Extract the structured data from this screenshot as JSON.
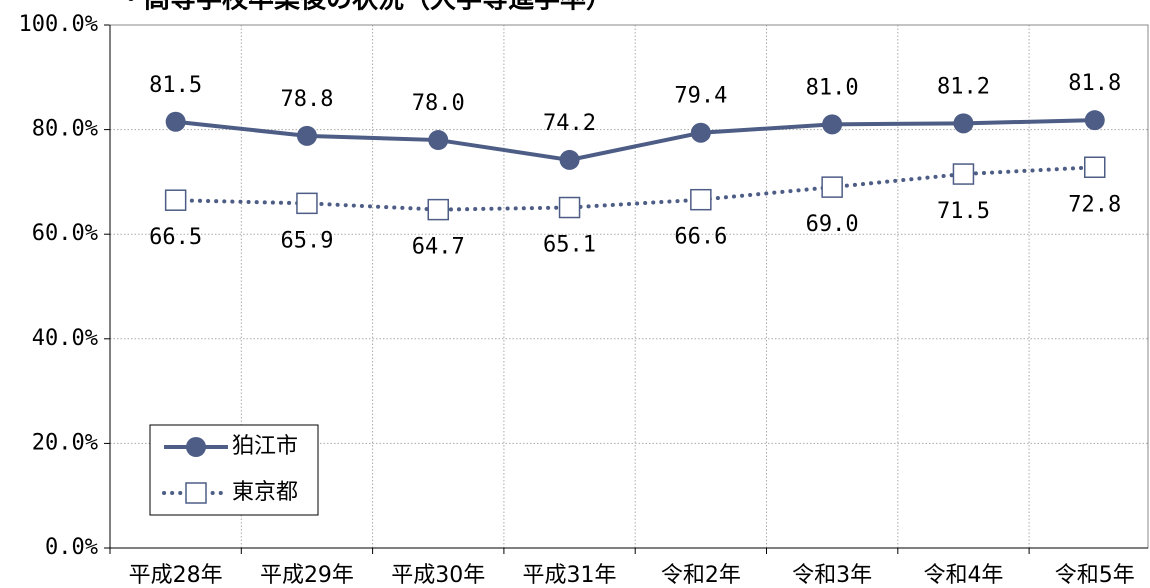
{
  "chart_data": {
    "type": "line",
    "title": "・高等学校卒業後の状況（大学等進学率）",
    "categories": [
      "平成28年",
      "平成29年",
      "平成30年",
      "平成31年",
      "令和2年",
      "令和3年",
      "令和4年",
      "令和5年"
    ],
    "series": [
      {
        "name": "狛江市",
        "color": "#4d5d85",
        "marker": "circle",
        "line": "solid",
        "values": [
          81.5,
          78.8,
          78.0,
          74.2,
          79.4,
          81.0,
          81.2,
          81.8
        ],
        "value_labels": [
          "81.5",
          "78.8",
          "78.0",
          "74.2",
          "79.4",
          "81.0",
          "81.2",
          "81.8"
        ]
      },
      {
        "name": "東京都",
        "color": "#4d5d85",
        "marker": "square",
        "line": "dotted",
        "values": [
          66.5,
          65.9,
          64.7,
          65.1,
          66.6,
          69.0,
          71.5,
          72.8
        ],
        "value_labels": [
          "66.5",
          "65.9",
          "64.7",
          "65.1",
          "66.6",
          "69.0",
          "71.5",
          "72.8"
        ]
      }
    ],
    "ylim": [
      0,
      100
    ],
    "yticks": [
      {
        "value": 0,
        "label": "0.0%"
      },
      {
        "value": 20,
        "label": "20.0%"
      },
      {
        "value": 40,
        "label": "40.0%"
      },
      {
        "value": 60,
        "label": "60.0%"
      },
      {
        "value": 80,
        "label": "80.0%"
      },
      {
        "value": 100,
        "label": "100.0%"
      }
    ],
    "grid": true,
    "legend": "lower left"
  }
}
